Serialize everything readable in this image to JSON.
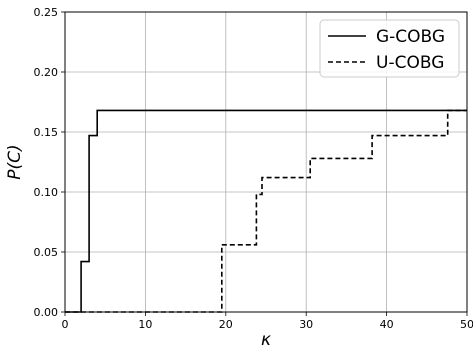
{
  "chart_data": {
    "type": "line",
    "title": "",
    "xlabel": "κ",
    "ylabel": "P(C)",
    "xlim": [
      0,
      50
    ],
    "ylim": [
      0,
      0.25
    ],
    "xticks": [
      0,
      10,
      20,
      30,
      40,
      50
    ],
    "xtick_labels": [
      "0",
      "10",
      "20",
      "30",
      "40",
      "50"
    ],
    "yticks": [
      0.0,
      0.05,
      0.1,
      0.15,
      0.2,
      0.25
    ],
    "ytick_labels": [
      "0.00",
      "0.05",
      "0.10",
      "0.15",
      "0.20",
      "0.25"
    ],
    "grid": true,
    "legend_position": "top-right",
    "series": [
      {
        "name": "G-COBG",
        "style": "solid",
        "color": "#000000",
        "x": [
          0,
          2,
          2,
          3,
          3,
          4,
          4,
          50
        ],
        "y": [
          0,
          0,
          0.042,
          0.042,
          0.147,
          0.147,
          0.168,
          0.168
        ]
      },
      {
        "name": "U-COBG",
        "style": "dashed",
        "color": "#000000",
        "x": [
          0,
          19.5,
          19.5,
          23.8,
          23.8,
          24.5,
          24.5,
          30.5,
          30.5,
          38.2,
          38.2,
          47.6,
          47.6,
          50
        ],
        "y": [
          0,
          0,
          0.056,
          0.056,
          0.098,
          0.098,
          0.112,
          0.112,
          0.128,
          0.128,
          0.147,
          0.147,
          0.168,
          0.168
        ]
      }
    ]
  }
}
